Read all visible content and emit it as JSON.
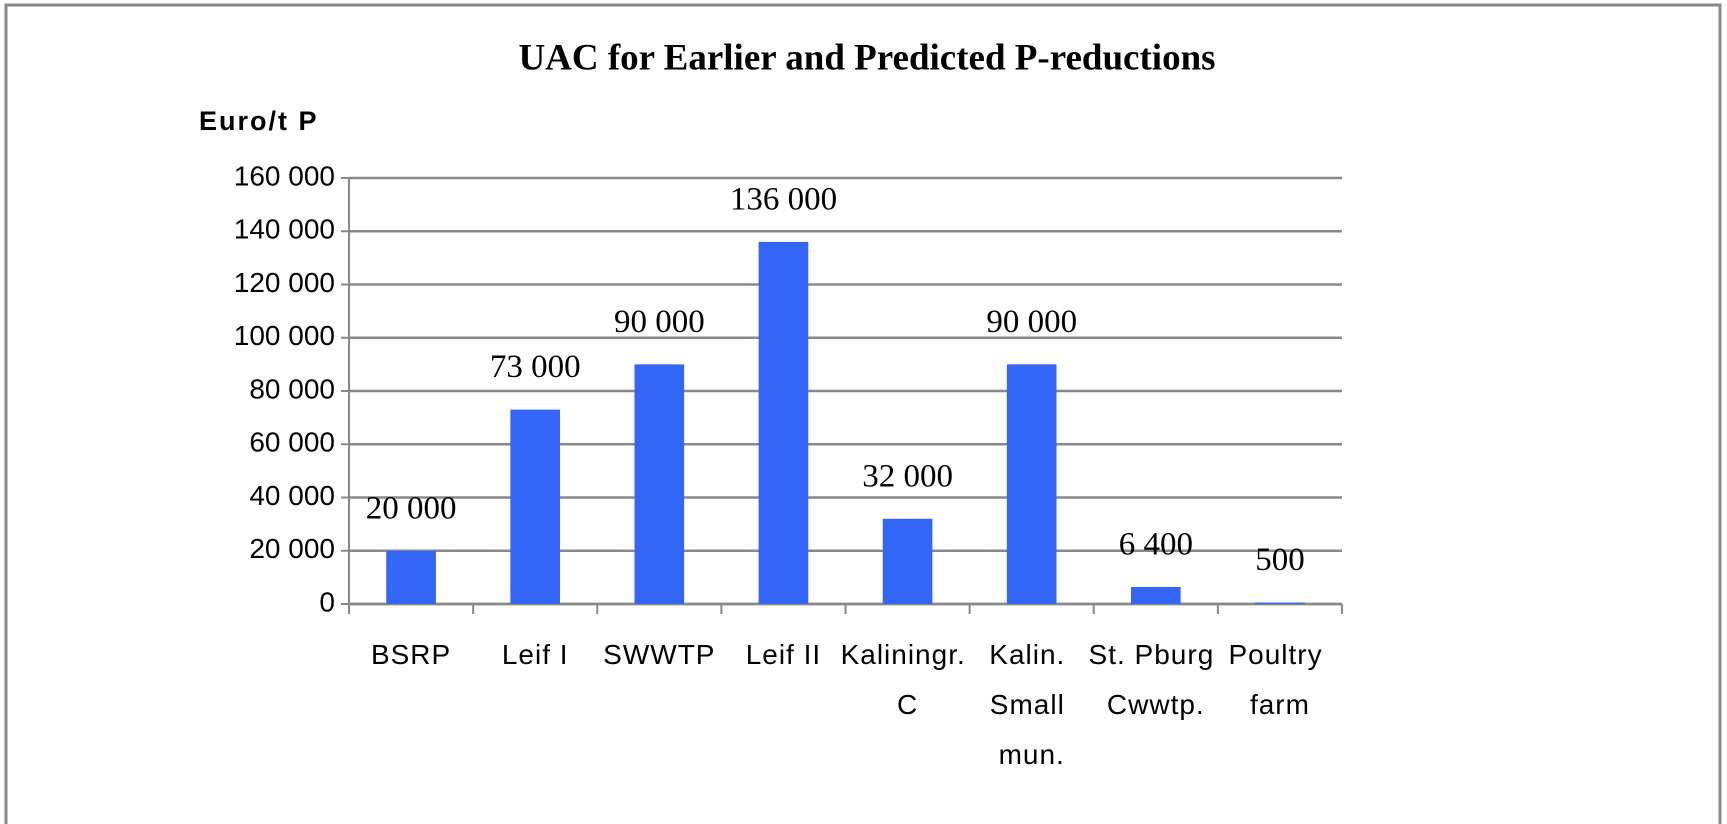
{
  "chart_data": {
    "type": "bar",
    "title": "UAC for Earlier and Predicted P-reductions",
    "y_axis_label": "Euro/t P",
    "categories": [
      "BSRP",
      "Leif I",
      "SWWTP",
      "Leif II",
      "Kaliningr. C",
      "Kalin. Small mun.",
      "St. Pburg Cwwtp.",
      "Poultry farm"
    ],
    "values": [
      20000,
      73000,
      90000,
      136000,
      32000,
      90000,
      6400,
      500
    ],
    "value_labels": [
      "20 000",
      "73 000",
      "90 000",
      "136 000",
      "32 000",
      "90 000",
      "6 400",
      "500"
    ],
    "color": "#3366f6",
    "ylim": [
      0,
      160000
    ],
    "yticks": [
      0,
      {
        "value": 20000,
        "label": "20 000"
      },
      {
        "value": 40000,
        "label": "40 000"
      },
      {
        "value": 60000,
        "label": "60 000"
      },
      {
        "value": 80000,
        "label": "80 000"
      },
      {
        "value": 100000,
        "label": "100 000"
      },
      {
        "value": 120000,
        "label": "120 000"
      },
      {
        "value": 140000,
        "label": "140 000"
      },
      {
        "value": 160000,
        "label": "160 000"
      }
    ],
    "grid": true
  }
}
